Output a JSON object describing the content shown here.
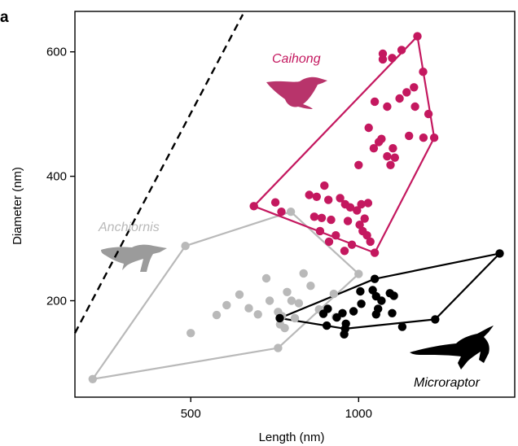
{
  "panel_label": "a",
  "chart_data": {
    "type": "scatter",
    "xlabel": "Length (nm)",
    "ylabel": "Diameter (nm)",
    "xlim": [
      155,
      1465
    ],
    "ylim": [
      45,
      665
    ],
    "x_ticks": [
      500,
      1000
    ],
    "y_ticks": [
      200,
      400,
      600
    ],
    "grid": false,
    "reference_line": {
      "style": "dashed",
      "color": "#000000",
      "points": [
        [
          155,
          148
        ],
        [
          655,
          660
        ]
      ]
    },
    "series": [
      {
        "name": "Anchiornis",
        "color": "#b9b9b9",
        "hull": [
          [
            208,
            74
          ],
          [
            484,
            288
          ],
          [
            798,
            343
          ],
          [
            1000,
            243
          ],
          [
            760,
            124
          ]
        ],
        "points": [
          [
            484,
            288
          ],
          [
            798,
            343
          ],
          [
            1000,
            243
          ],
          [
            760,
            124
          ],
          [
            208,
            74
          ],
          [
            500,
            148
          ],
          [
            577,
            177
          ],
          [
            607,
            193
          ],
          [
            645,
            210
          ],
          [
            673,
            188
          ],
          [
            700,
            178
          ],
          [
            725,
            236
          ],
          [
            735,
            200
          ],
          [
            760,
            182
          ],
          [
            766,
            162
          ],
          [
            787,
            214
          ],
          [
            800,
            200
          ],
          [
            822,
            196
          ],
          [
            836,
            244
          ],
          [
            857,
            224
          ],
          [
            772,
            175
          ],
          [
            780,
            156
          ],
          [
            810,
            172
          ],
          [
            926,
            211
          ],
          [
            932,
            174
          ],
          [
            882,
            186
          ]
        ]
      },
      {
        "name": "Caihong",
        "color": "#c4185f",
        "hull": [
          [
            688,
            352
          ],
          [
            1175,
            625
          ],
          [
            1225,
            462
          ],
          [
            1048,
            277
          ]
        ],
        "points": [
          [
            688,
            352
          ],
          [
            1175,
            625
          ],
          [
            1225,
            462
          ],
          [
            1048,
            277
          ],
          [
            1192,
            568
          ],
          [
            1072,
            597
          ],
          [
            1072,
            588
          ],
          [
            1100,
            590
          ],
          [
            1128,
            603
          ],
          [
            1165,
            543
          ],
          [
            1085,
            512
          ],
          [
            1143,
            535
          ],
          [
            1168,
            512
          ],
          [
            1208,
            500
          ],
          [
            1122,
            525
          ],
          [
            1048,
            520
          ],
          [
            1068,
            460
          ],
          [
            1030,
            478
          ],
          [
            1102,
            445
          ],
          [
            1108,
            430
          ],
          [
            1085,
            432
          ],
          [
            1095,
            418
          ],
          [
            1193,
            462
          ],
          [
            1150,
            465
          ],
          [
            1045,
            445
          ],
          [
            1000,
            418
          ],
          [
            898,
            385
          ],
          [
            853,
            370
          ],
          [
            875,
            367
          ],
          [
            910,
            362
          ],
          [
            945,
            365
          ],
          [
            960,
            355
          ],
          [
            975,
            350
          ],
          [
            995,
            345
          ],
          [
            1008,
            355
          ],
          [
            1028,
            357
          ],
          [
            1060,
            455
          ],
          [
            868,
            335
          ],
          [
            890,
            333
          ],
          [
            918,
            330
          ],
          [
            968,
            328
          ],
          [
            1003,
            322
          ],
          [
            885,
            312
          ],
          [
            932,
            305
          ],
          [
            1012,
            312
          ],
          [
            1025,
            305
          ],
          [
            1035,
            295
          ],
          [
            958,
            280
          ],
          [
            980,
            290
          ],
          [
            912,
            295
          ],
          [
            752,
            358
          ],
          [
            770,
            343
          ],
          [
            1018,
            332
          ]
        ]
      },
      {
        "name": "Microraptor",
        "color": "#000000",
        "hull": [
          [
            765,
            172
          ],
          [
            1048,
            235
          ],
          [
            1420,
            276
          ],
          [
            1228,
            170
          ],
          [
            960,
            155
          ]
        ],
        "points": [
          [
            765,
            172
          ],
          [
            1048,
            235
          ],
          [
            1420,
            276
          ],
          [
            1228,
            170
          ],
          [
            960,
            155
          ],
          [
            1130,
            158
          ],
          [
            1100,
            180
          ],
          [
            1068,
            200
          ],
          [
            1052,
            207
          ],
          [
            1042,
            217
          ],
          [
            1005,
            215
          ],
          [
            985,
            183
          ],
          [
            962,
            163
          ],
          [
            952,
            180
          ],
          [
            957,
            146
          ],
          [
            1008,
            195
          ],
          [
            1058,
            187
          ],
          [
            1093,
            212
          ],
          [
            1105,
            208
          ],
          [
            1052,
            178
          ],
          [
            905,
            160
          ],
          [
            908,
            187
          ],
          [
            895,
            179
          ],
          [
            935,
            173
          ]
        ]
      }
    ]
  }
}
